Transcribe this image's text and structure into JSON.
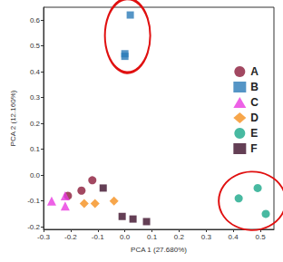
{
  "chart_data": {
    "type": "scatter",
    "x_label": "PCA 1 (27.680%)",
    "y_label": "PCA 2 (12.160%)",
    "xlim": [
      -0.3,
      0.55
    ],
    "ylim": [
      -0.21,
      0.65
    ],
    "xticks": [
      -0.3,
      -0.2,
      -0.1,
      {
        "value": 0,
        "label": "0.0"
      },
      0.1,
      0.2,
      0.3,
      0.4,
      0.5
    ],
    "yticks": [
      -0.2,
      -0.1,
      {
        "value": 0,
        "label": "0.0"
      },
      0.1,
      0.2,
      0.3,
      0.4,
      0.5,
      0.6
    ],
    "grid": false,
    "legend": "upper right",
    "series": [
      {
        "name": "A",
        "color": "#8b1a3a",
        "marker": "circle",
        "x": [
          -0.16,
          -0.12,
          -0.21
        ],
        "values": [
          -0.06,
          -0.02,
          -0.08
        ]
      },
      {
        "name": "B",
        "color": "#2a7ab8",
        "marker": "square",
        "x": [
          0.02,
          0.0,
          0.0
        ],
        "values": [
          0.62,
          0.47,
          0.46
        ]
      },
      {
        "name": "C",
        "color": "#e83ae0",
        "marker": "triangle",
        "x": [
          -0.27,
          -0.22,
          -0.22
        ],
        "values": [
          -0.1,
          -0.08,
          -0.12
        ]
      },
      {
        "name": "D",
        "color": "#f5901e",
        "marker": "diamond",
        "x": [
          -0.15,
          -0.11,
          -0.04
        ],
        "values": [
          -0.11,
          -0.11,
          -0.1
        ]
      },
      {
        "name": "E",
        "color": "#1aa88a",
        "marker": "circle",
        "x": [
          0.42,
          0.49,
          0.52
        ],
        "values": [
          -0.09,
          -0.05,
          -0.15
        ]
      },
      {
        "name": "F",
        "color": "#3d0f2a",
        "marker": "square",
        "x": [
          -0.08,
          -0.01,
          0.03,
          0.08
        ],
        "values": [
          -0.05,
          -0.16,
          -0.17,
          -0.18
        ]
      }
    ]
  }
}
